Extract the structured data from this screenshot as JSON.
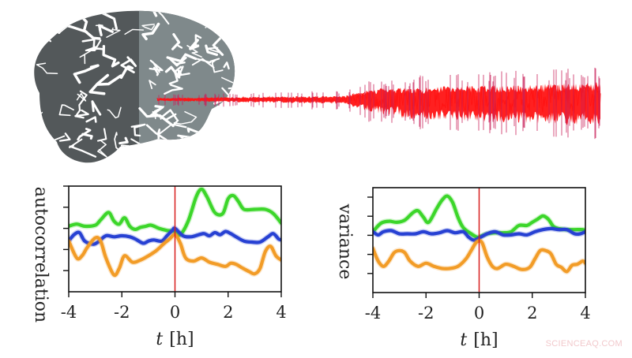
{
  "figure": {
    "brain": {
      "label": "brain-illustration",
      "front_color": "#4f5354",
      "back_color": "#7d8688"
    },
    "signal": {
      "label": "EEG signal trace",
      "color": "#ff1a1a",
      "x_start": 199,
      "x_end": 760,
      "y_center": 126
    }
  },
  "watermark": "SCIENCEAQ.COM",
  "chart_data": [
    {
      "type": "line",
      "title": "",
      "xlabel": "t [h]",
      "xlabel_italic": "t",
      "xlabel_unit": "[h]",
      "ylabel": "autocorrelation",
      "xlim": [
        -4,
        4
      ],
      "xticks": [
        -4,
        -2,
        0,
        2,
        4
      ],
      "xtick_labels": [
        "-4",
        "-2",
        "0",
        "2",
        "4"
      ],
      "yticks_count": 5,
      "ytick_labels": [],
      "grid": false,
      "legend": null,
      "vline": {
        "x": 0,
        "color": "#d81e1e"
      },
      "box": {
        "x0": 87,
        "y0": 236,
        "x1": 356,
        "y1": 370
      },
      "series": [
        {
          "name": "green",
          "color": "#3cd62a",
          "x": [
            -4,
            -3.7,
            -3.4,
            -3.0,
            -2.8,
            -2.5,
            -2.3,
            -2.1,
            -1.9,
            -1.7,
            -1.5,
            -1.3,
            -1.1,
            -0.9,
            -0.6,
            -0.3,
            0,
            0.2,
            0.5,
            0.8,
            1.0,
            1.2,
            1.5,
            1.8,
            2.0,
            2.2,
            2.4,
            2.6,
            3.0,
            3.4,
            3.7,
            4.0
          ],
          "y": [
            0.38,
            0.36,
            0.38,
            0.37,
            0.32,
            0.25,
            0.33,
            0.36,
            0.3,
            0.38,
            0.41,
            0.39,
            0.38,
            0.37,
            0.4,
            0.42,
            0.43,
            0.46,
            0.33,
            0.1,
            0.03,
            0.1,
            0.25,
            0.26,
            0.12,
            0.09,
            0.15,
            0.22,
            0.22,
            0.22,
            0.26,
            0.35
          ]
        },
        {
          "name": "blue",
          "color": "#2741d3",
          "x": [
            -4,
            -3.8,
            -3.6,
            -3.4,
            -3.1,
            -2.9,
            -2.6,
            -2.3,
            -2.0,
            -1.7,
            -1.5,
            -1.2,
            -1.0,
            -0.8,
            -0.5,
            -0.3,
            -0.1,
            0,
            0.3,
            0.6,
            0.9,
            1.1,
            1.3,
            1.5,
            1.7,
            1.9,
            2.1,
            2.3,
            2.6,
            2.9,
            3.2,
            3.5,
            3.7,
            3.9,
            4.0
          ],
          "y": [
            0.52,
            0.46,
            0.44,
            0.52,
            0.55,
            0.53,
            0.47,
            0.48,
            0.47,
            0.48,
            0.5,
            0.54,
            0.52,
            0.51,
            0.52,
            0.47,
            0.42,
            0.4,
            0.47,
            0.48,
            0.46,
            0.45,
            0.47,
            0.44,
            0.46,
            0.43,
            0.45,
            0.48,
            0.52,
            0.53,
            0.53,
            0.48,
            0.45,
            0.5,
            0.51
          ]
        },
        {
          "name": "orange",
          "color": "#f29c27",
          "x": [
            -4,
            -3.7,
            -3.5,
            -3.3,
            -3.0,
            -2.8,
            -2.6,
            -2.3,
            -2.1,
            -1.9,
            -1.6,
            -1.3,
            -1.0,
            -0.7,
            -0.4,
            -0.2,
            0,
            0.2,
            0.4,
            0.7,
            1.0,
            1.3,
            1.6,
            1.9,
            2.1,
            2.3,
            2.5,
            2.8,
            3.0,
            3.2,
            3.4,
            3.6,
            3.8,
            4.0
          ],
          "y": [
            0.52,
            0.68,
            0.66,
            0.58,
            0.49,
            0.52,
            0.68,
            0.84,
            0.78,
            0.66,
            0.72,
            0.7,
            0.66,
            0.61,
            0.54,
            0.5,
            0.46,
            0.54,
            0.68,
            0.71,
            0.68,
            0.72,
            0.74,
            0.76,
            0.73,
            0.74,
            0.77,
            0.81,
            0.83,
            0.78,
            0.62,
            0.57,
            0.66,
            0.7
          ]
        }
      ]
    },
    {
      "type": "line",
      "title": "",
      "xlabel": "t [h]",
      "xlabel_italic": "t",
      "xlabel_unit": "[h]",
      "ylabel": "variance",
      "xlim": [
        -4,
        4
      ],
      "xticks": [
        -4,
        -2,
        0,
        2,
        4
      ],
      "xtick_labels": [
        "-4",
        "-2",
        "0",
        "2",
        "4"
      ],
      "yticks_count": 5,
      "ytick_labels": [],
      "grid": false,
      "legend": null,
      "vline": {
        "x": 0,
        "color": "#d81e1e"
      },
      "box": {
        "x0": 472,
        "y0": 238,
        "x1": 741,
        "y1": 371
      },
      "series": [
        {
          "name": "green",
          "color": "#3cd62a",
          "x": [
            -4,
            -3.7,
            -3.4,
            -3.1,
            -2.8,
            -2.5,
            -2.3,
            -2.1,
            -1.9,
            -1.6,
            -1.4,
            -1.2,
            -1.0,
            -0.8,
            -0.6,
            -0.3,
            -0.1,
            0,
            0.3,
            0.6,
            0.9,
            1.2,
            1.5,
            1.8,
            2.0,
            2.2,
            2.4,
            2.6,
            2.8,
            3.0,
            3.3,
            3.6,
            3.9,
            4.0
          ],
          "y": [
            0.42,
            0.34,
            0.32,
            0.33,
            0.31,
            0.24,
            0.22,
            0.28,
            0.33,
            0.2,
            0.12,
            0.08,
            0.14,
            0.28,
            0.38,
            0.44,
            0.47,
            0.47,
            0.44,
            0.43,
            0.43,
            0.42,
            0.36,
            0.36,
            0.33,
            0.3,
            0.27,
            0.3,
            0.37,
            0.39,
            0.4,
            0.4,
            0.4,
            0.41
          ]
        },
        {
          "name": "blue",
          "color": "#2741d3",
          "x": [
            -4,
            -3.8,
            -3.6,
            -3.3,
            -3.0,
            -2.7,
            -2.4,
            -2.1,
            -1.8,
            -1.5,
            -1.2,
            -0.9,
            -0.6,
            -0.4,
            -0.2,
            0,
            0.3,
            0.6,
            0.9,
            1.2,
            1.5,
            1.8,
            2.1,
            2.4,
            2.7,
            3.0,
            3.3,
            3.6,
            3.8,
            4.0
          ],
          "y": [
            0.42,
            0.45,
            0.42,
            0.41,
            0.44,
            0.44,
            0.44,
            0.42,
            0.44,
            0.43,
            0.41,
            0.43,
            0.42,
            0.47,
            0.5,
            0.48,
            0.44,
            0.42,
            0.45,
            0.45,
            0.44,
            0.45,
            0.42,
            0.4,
            0.39,
            0.4,
            0.4,
            0.44,
            0.44,
            0.42
          ]
        },
        {
          "name": "orange",
          "color": "#f29c27",
          "x": [
            -4,
            -3.8,
            -3.6,
            -3.4,
            -3.2,
            -3.0,
            -2.8,
            -2.6,
            -2.3,
            -2.0,
            -1.7,
            -1.4,
            -1.1,
            -0.8,
            -0.5,
            -0.3,
            -0.1,
            0.1,
            0.3,
            0.5,
            0.7,
            1.0,
            1.3,
            1.6,
            1.9,
            2.1,
            2.3,
            2.5,
            2.7,
            2.9,
            3.1,
            3.3,
            3.5,
            3.7,
            3.9,
            4.0
          ],
          "y": [
            0.58,
            0.7,
            0.75,
            0.7,
            0.62,
            0.6,
            0.62,
            0.7,
            0.75,
            0.72,
            0.75,
            0.77,
            0.77,
            0.75,
            0.68,
            0.6,
            0.52,
            0.52,
            0.66,
            0.75,
            0.77,
            0.73,
            0.75,
            0.78,
            0.76,
            0.68,
            0.6,
            0.6,
            0.63,
            0.73,
            0.76,
            0.8,
            0.74,
            0.73,
            0.7,
            0.72
          ]
        }
      ]
    }
  ]
}
